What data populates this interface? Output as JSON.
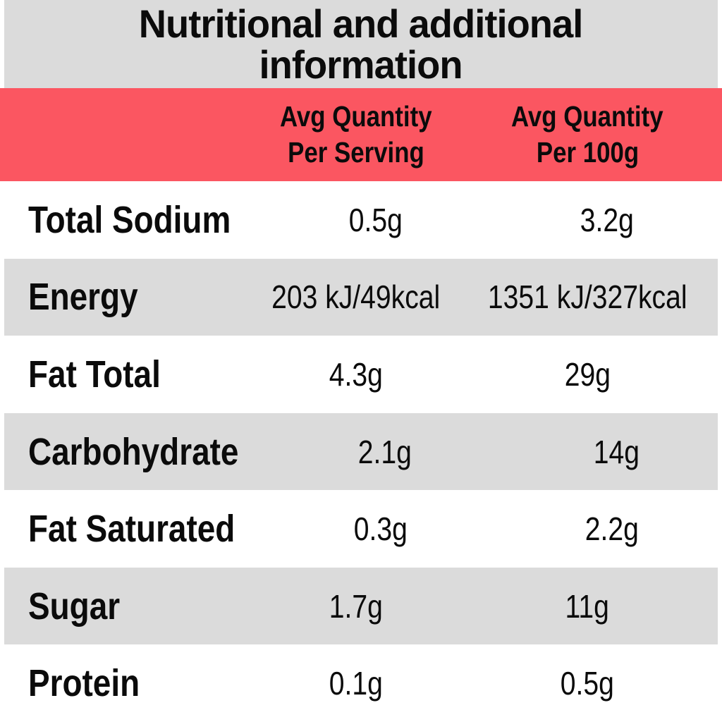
{
  "title": {
    "line1": "Nutritional and additional",
    "line2": "information"
  },
  "table": {
    "columns": {
      "serving_line1": "Avg Quantity",
      "serving_line2": "Per Serving",
      "per100_line1": "Avg Quantity",
      "per100_line2": "Per 100g"
    },
    "rows": [
      {
        "label": "Total Sodium",
        "per_serving": "0.5g",
        "per_100g": "3.2g"
      },
      {
        "label": "Energy",
        "per_serving": "203 kJ/49kcal",
        "per_100g": "1351 kJ/327kcal"
      },
      {
        "label": "Fat Total",
        "per_serving": "4.3g",
        "per_100g": "29g"
      },
      {
        "label": "Carbohydrate",
        "per_serving": "2.1g",
        "per_100g": "14g"
      },
      {
        "label": "Fat Saturated",
        "per_serving": "0.3g",
        "per_100g": "2.2g"
      },
      {
        "label": "Sugar",
        "per_serving": "1.7g",
        "per_100g": "11g"
      },
      {
        "label": "Protein",
        "per_serving": "0.1g",
        "per_100g": "0.5g"
      }
    ]
  },
  "colors": {
    "accent_red": "#fb5661",
    "band_gray": "#dbdbdb",
    "text": "#0b0b0b",
    "page_bg": "#ffffff"
  }
}
